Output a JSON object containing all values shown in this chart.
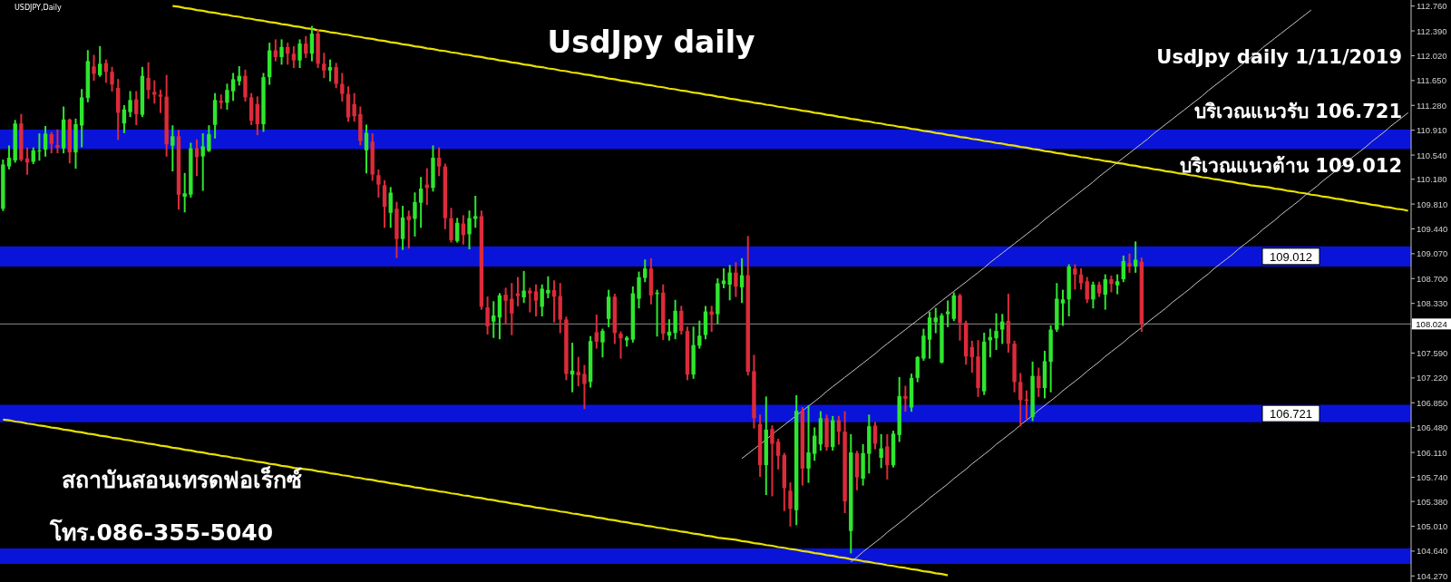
{
  "chart_data": {
    "type": "candlestick",
    "title": "UsdJpy daily",
    "categories": [
      null,
      null,
      null,
      null,
      null,
      null,
      null,
      null,
      null,
      null,
      null,
      null,
      null,
      null,
      null,
      null,
      null,
      null,
      null,
      null,
      null,
      null,
      null,
      null,
      null,
      null,
      null,
      null,
      null,
      null,
      null,
      null,
      null,
      null,
      null,
      null,
      null,
      null,
      null,
      null,
      null,
      null,
      null,
      null,
      null,
      null,
      null,
      null,
      null,
      null,
      null,
      null,
      null,
      null,
      null,
      null,
      null,
      null,
      null,
      null,
      null,
      null,
      null,
      null,
      null,
      null,
      null,
      null,
      null,
      null,
      null,
      null,
      null,
      null,
      null,
      null,
      null,
      null,
      null,
      null,
      null,
      null,
      null,
      null,
      null,
      null,
      null,
      null,
      null,
      null,
      null,
      null,
      null,
      null,
      null,
      null,
      null,
      null,
      null,
      null,
      null,
      null,
      null,
      null,
      null,
      null,
      null,
      null,
      null,
      null,
      null,
      null,
      null,
      null,
      null,
      null,
      null,
      null,
      null,
      null,
      null,
      null,
      null,
      null,
      null,
      null,
      null,
      null,
      null,
      null,
      null,
      null,
      null,
      null,
      null,
      null,
      null,
      null,
      null,
      null,
      null,
      null,
      null,
      null,
      null,
      null,
      null,
      null,
      null,
      null,
      null,
      null,
      null,
      null,
      null,
      null,
      null,
      null,
      null,
      null,
      null,
      null,
      null,
      null,
      null,
      null,
      null,
      null,
      null,
      null,
      null,
      null,
      null,
      null,
      null,
      null,
      null,
      null,
      null,
      null,
      null,
      null,
      null,
      null,
      null,
      null,
      null,
      null,
      null,
      null,
      null,
      null,
      null,
      null,
      null,
      null,
      null,
      null,
      null,
      null,
      null,
      null,
      null,
      null,
      null,
      null,
      null,
      null,
      null,
      null,
      null,
      null,
      null,
      null,
      null,
      null,
      null,
      null,
      null,
      null,
      null,
      null,
      null,
      null,
      null,
      null,
      null,
      null,
      null,
      null,
      null,
      null,
      null
    ],
    "ohlc": [
      [
        109.74,
        110.46,
        109.72,
        110.4
      ],
      [
        110.37,
        110.67,
        110.34,
        110.5
      ],
      [
        110.46,
        111.05,
        110.44,
        111.01
      ],
      [
        111.01,
        111.14,
        110.46,
        110.47
      ],
      [
        110.49,
        110.64,
        110.26,
        110.43
      ],
      [
        110.44,
        110.64,
        110.42,
        110.61
      ],
      [
        110.6,
        110.85,
        110.47,
        110.61
      ],
      [
        110.62,
        110.96,
        110.53,
        110.86
      ],
      [
        110.85,
        110.87,
        110.58,
        110.71
      ],
      [
        110.69,
        110.91,
        110.58,
        110.65
      ],
      [
        110.64,
        111.25,
        110.58,
        111.07
      ],
      [
        111.07,
        111.07,
        110.43,
        110.58
      ],
      [
        110.58,
        111.07,
        110.35,
        111.0
      ],
      [
        110.98,
        111.51,
        110.67,
        111.4
      ],
      [
        111.39,
        112.09,
        111.34,
        111.94
      ],
      [
        111.86,
        112.02,
        111.66,
        111.75
      ],
      [
        111.73,
        112.15,
        111.72,
        111.9
      ],
      [
        111.91,
        111.95,
        111.63,
        111.78
      ],
      [
        111.78,
        111.84,
        111.5,
        111.59
      ],
      [
        111.54,
        111.66,
        110.78,
        111.17
      ],
      [
        111.01,
        111.27,
        110.88,
        111.22
      ],
      [
        111.18,
        111.48,
        111.12,
        111.36
      ],
      [
        111.37,
        111.48,
        111.0,
        111.15
      ],
      [
        111.14,
        111.84,
        111.12,
        111.72
      ],
      [
        111.69,
        111.91,
        111.39,
        111.51
      ],
      [
        111.48,
        111.64,
        111.32,
        111.44
      ],
      [
        111.44,
        111.5,
        111.18,
        111.41
      ],
      [
        111.41,
        111.72,
        110.53,
        110.7
      ],
      [
        110.68,
        110.97,
        110.31,
        110.82
      ],
      [
        110.82,
        110.9,
        109.74,
        109.95
      ],
      [
        109.92,
        110.26,
        109.7,
        109.97
      ],
      [
        109.95,
        110.71,
        109.92,
        110.64
      ],
      [
        110.64,
        110.76,
        110.24,
        110.51
      ],
      [
        110.52,
        110.85,
        110.02,
        110.67
      ],
      [
        110.6,
        110.97,
        110.6,
        110.85
      ],
      [
        110.99,
        111.45,
        110.8,
        111.36
      ],
      [
        111.35,
        111.43,
        111.24,
        111.32
      ],
      [
        111.32,
        111.59,
        111.23,
        111.51
      ],
      [
        111.49,
        111.75,
        111.36,
        111.67
      ],
      [
        111.64,
        111.85,
        111.59,
        111.72
      ],
      [
        111.72,
        111.8,
        111.35,
        111.4
      ],
      [
        111.4,
        111.45,
        111.0,
        111.05
      ],
      [
        111.3,
        111.4,
        110.85,
        111.0
      ],
      [
        111.0,
        111.75,
        110.9,
        111.7
      ],
      [
        111.7,
        112.2,
        111.6,
        112.1
      ],
      [
        112.1,
        112.25,
        111.95,
        112.0
      ],
      [
        112.0,
        112.25,
        111.9,
        112.15
      ],
      [
        112.15,
        112.2,
        111.9,
        112.05
      ],
      [
        112.05,
        112.15,
        111.85,
        111.95
      ],
      [
        111.95,
        112.25,
        111.85,
        112.2
      ],
      [
        112.2,
        112.3,
        112.0,
        112.05
      ],
      [
        112.05,
        112.45,
        111.95,
        112.35
      ],
      [
        112.35,
        112.4,
        111.85,
        111.9
      ],
      [
        111.9,
        112.05,
        111.7,
        111.8
      ],
      [
        111.8,
        111.95,
        111.65,
        111.85
      ],
      [
        111.85,
        111.9,
        111.55,
        111.6
      ],
      [
        111.6,
        111.75,
        111.35,
        111.45
      ],
      [
        111.45,
        111.55,
        111.05,
        111.1
      ],
      [
        111.3,
        111.45,
        111.05,
        111.12
      ],
      [
        111.15,
        111.25,
        110.7,
        110.75
      ],
      [
        110.61,
        110.98,
        110.28,
        110.87
      ],
      [
        110.74,
        110.85,
        110.17,
        110.25
      ],
      [
        110.24,
        110.31,
        109.92,
        110.1
      ],
      [
        110.09,
        110.15,
        109.47,
        109.77
      ],
      [
        109.68,
        110.05,
        109.47,
        109.98
      ],
      [
        109.74,
        109.83,
        109.02,
        109.29
      ],
      [
        109.29,
        109.77,
        109.14,
        109.61
      ],
      [
        109.63,
        109.7,
        109.16,
        109.57
      ],
      [
        109.59,
        109.97,
        109.34,
        109.84
      ],
      [
        109.83,
        110.2,
        109.47,
        110.04
      ],
      [
        110.1,
        110.33,
        109.81,
        110.05
      ],
      [
        110.05,
        110.67,
        110.01,
        110.5
      ],
      [
        110.5,
        110.64,
        110.24,
        110.37
      ],
      [
        110.37,
        110.4,
        109.45,
        109.6
      ],
      [
        109.6,
        109.74,
        109.25,
        109.27
      ],
      [
        109.26,
        109.59,
        109.25,
        109.53
      ],
      [
        109.52,
        109.63,
        109.22,
        109.35
      ],
      [
        109.36,
        109.7,
        109.15,
        109.6
      ],
      [
        109.59,
        109.92,
        109.47,
        109.63
      ],
      [
        109.63,
        109.7,
        108.25,
        108.28
      ],
      [
        108.27,
        108.42,
        107.88,
        107.99
      ],
      [
        108.06,
        108.35,
        107.83,
        108.15
      ],
      [
        108.12,
        108.47,
        107.81,
        108.45
      ],
      [
        108.46,
        108.55,
        108.03,
        108.37
      ],
      [
        108.4,
        108.62,
        107.87,
        108.18
      ],
      [
        108.48,
        108.71,
        108.3,
        108.44
      ],
      [
        108.42,
        108.8,
        108.35,
        108.52
      ],
      [
        108.52,
        108.55,
        108.21,
        108.48
      ],
      [
        108.51,
        108.6,
        108.15,
        108.37
      ],
      [
        108.28,
        108.6,
        108.15,
        108.55
      ],
      [
        108.48,
        108.72,
        108.42,
        108.53
      ],
      [
        108.53,
        108.66,
        108.06,
        108.43
      ],
      [
        108.44,
        108.62,
        107.9,
        108.09
      ],
      [
        108.09,
        108.12,
        107.2,
        107.28
      ],
      [
        107.27,
        107.73,
        107.02,
        107.33
      ],
      [
        107.31,
        107.52,
        107.11,
        107.26
      ],
      [
        107.28,
        107.4,
        106.77,
        107.13
      ],
      [
        107.16,
        107.83,
        107.09,
        107.77
      ],
      [
        107.9,
        108.15,
        107.67,
        107.76
      ],
      [
        107.75,
        107.94,
        107.54,
        107.92
      ],
      [
        108.1,
        108.52,
        107.99,
        108.43
      ],
      [
        108.43,
        108.46,
        107.74,
        107.89
      ],
      [
        107.88,
        107.9,
        107.52,
        107.81
      ],
      [
        107.78,
        107.83,
        107.7,
        107.82
      ],
      [
        107.79,
        108.57,
        107.76,
        108.48
      ],
      [
        108.4,
        108.79,
        108.27,
        108.72
      ],
      [
        108.71,
        108.97,
        108.66,
        108.85
      ],
      [
        108.85,
        108.99,
        108.33,
        108.45
      ],
      [
        108.47,
        108.52,
        107.85,
        108.49
      ],
      [
        108.49,
        108.6,
        107.8,
        107.88
      ],
      [
        107.85,
        108.08,
        107.79,
        107.91
      ],
      [
        107.89,
        108.37,
        107.81,
        108.22
      ],
      [
        108.22,
        108.28,
        107.88,
        107.92
      ],
      [
        107.92,
        107.97,
        107.2,
        107.27
      ],
      [
        107.27,
        107.97,
        107.22,
        107.71
      ],
      [
        107.7,
        108.06,
        107.67,
        107.85
      ],
      [
        107.86,
        108.28,
        107.81,
        108.21
      ],
      [
        108.21,
        108.28,
        107.92,
        108.16
      ],
      [
        108.17,
        108.69,
        108.04,
        108.63
      ],
      [
        108.62,
        108.84,
        108.57,
        108.67
      ],
      [
        108.61,
        108.89,
        108.39,
        108.79
      ],
      [
        108.79,
        108.93,
        108.44,
        108.58
      ],
      [
        108.57,
        108.99,
        108.35,
        108.75
      ],
      [
        108.75,
        109.32,
        107.27,
        107.31
      ],
      [
        107.32,
        107.55,
        106.48,
        106.62
      ],
      [
        106.53,
        106.66,
        105.76,
        105.92
      ],
      [
        105.92,
        106.93,
        105.49,
        106.45
      ],
      [
        106.46,
        106.5,
        105.47,
        106.24
      ],
      [
        106.27,
        106.3,
        105.87,
        106.06
      ],
      [
        106.07,
        106.09,
        105.25,
        105.58
      ],
      [
        105.54,
        105.65,
        105.02,
        105.27
      ],
      [
        105.25,
        106.95,
        105.04,
        106.73
      ],
      [
        106.73,
        106.77,
        105.63,
        105.87
      ],
      [
        105.87,
        106.8,
        105.67,
        106.11
      ],
      [
        106.09,
        106.47,
        106.0,
        106.36
      ],
      [
        106.23,
        106.71,
        106.15,
        106.62
      ],
      [
        106.62,
        106.66,
        106.15,
        106.19
      ],
      [
        106.19,
        106.64,
        106.15,
        106.59
      ],
      [
        106.59,
        106.64,
        106.24,
        106.42
      ],
      [
        106.42,
        106.71,
        105.22,
        105.38
      ],
      [
        104.94,
        106.37,
        104.62,
        106.11
      ],
      [
        106.1,
        106.12,
        105.56,
        105.74
      ],
      [
        105.72,
        106.22,
        105.63,
        106.1
      ],
      [
        106.09,
        106.66,
        105.81,
        106.5
      ],
      [
        106.51,
        106.55,
        106.17,
        106.24
      ],
      [
        106.03,
        106.37,
        105.89,
        106.17
      ],
      [
        106.2,
        106.37,
        105.72,
        105.92
      ],
      [
        105.92,
        106.42,
        105.9,
        106.39
      ],
      [
        106.37,
        107.22,
        106.28,
        106.95
      ],
      [
        106.95,
        107.09,
        106.73,
        106.91
      ],
      [
        106.78,
        107.27,
        106.73,
        107.22
      ],
      [
        107.22,
        107.53,
        107.17,
        107.53
      ],
      [
        107.51,
        107.94,
        107.49,
        107.85
      ],
      [
        107.79,
        108.19,
        107.52,
        108.12
      ],
      [
        108.05,
        108.25,
        107.9,
        108.12
      ],
      [
        107.45,
        108.17,
        107.45,
        108.15
      ],
      [
        108.17,
        108.36,
        107.99,
        108.21
      ],
      [
        108.1,
        108.48,
        108.08,
        108.45
      ],
      [
        108.45,
        108.46,
        107.79,
        108.04
      ],
      [
        108.04,
        108.06,
        107.43,
        107.54
      ],
      [
        107.68,
        107.76,
        107.31,
        107.53
      ],
      [
        107.54,
        107.77,
        106.95,
        107.07
      ],
      [
        107.02,
        107.88,
        106.98,
        107.76
      ],
      [
        107.78,
        107.94,
        107.54,
        107.83
      ],
      [
        107.81,
        108.17,
        107.65,
        107.92
      ],
      [
        107.94,
        108.16,
        107.74,
        108.06
      ],
      [
        108.07,
        108.46,
        107.61,
        107.73
      ],
      [
        107.73,
        107.76,
        107.02,
        107.16
      ],
      [
        107.16,
        107.28,
        106.51,
        106.89
      ],
      [
        106.9,
        107.02,
        106.62,
        106.88
      ],
      [
        106.64,
        107.45,
        106.59,
        107.25
      ],
      [
        107.25,
        107.36,
        106.95,
        107.07
      ],
      [
        107.07,
        107.61,
        106.93,
        107.47
      ],
      [
        107.46,
        107.99,
        107.02,
        107.94
      ],
      [
        107.94,
        108.62,
        107.92,
        108.4
      ],
      [
        108.33,
        108.52,
        108.01,
        108.39
      ],
      [
        108.39,
        108.9,
        108.15,
        108.88
      ],
      [
        108.85,
        108.9,
        108.55,
        108.76
      ],
      [
        108.76,
        108.84,
        108.55,
        108.63
      ],
      [
        108.66,
        108.71,
        108.35,
        108.39
      ],
      [
        108.39,
        108.64,
        108.27,
        108.61
      ],
      [
        108.61,
        108.64,
        108.44,
        108.48
      ],
      [
        108.46,
        108.75,
        108.25,
        108.69
      ],
      [
        108.69,
        108.73,
        108.51,
        108.62
      ],
      [
        108.6,
        108.75,
        108.48,
        108.66
      ],
      [
        108.69,
        109.03,
        108.66,
        108.96
      ],
      [
        108.93,
        109.06,
        108.8,
        108.88
      ],
      [
        108.88,
        109.24,
        108.8,
        108.98
      ],
      [
        108.95,
        109.0,
        107.92,
        108.024
      ],
      null,
      null,
      null,
      null,
      null,
      null,
      null,
      null,
      null,
      null,
      null,
      null,
      null,
      null,
      null,
      null,
      null,
      null,
      null,
      null,
      null,
      null,
      null,
      null,
      null,
      null,
      null,
      null,
      null,
      null,
      null,
      null,
      null,
      null,
      null,
      null,
      null,
      null,
      null,
      null,
      null,
      null,
      null,
      null
    ],
    "series": [
      {
        "type": "line",
        "color": "#e8e000",
        "values": [
          null,
          null,
          null,
          null,
          null,
          null,
          null,
          null,
          null,
          null,
          null,
          null,
          null,
          null,
          null,
          null,
          null,
          null,
          null,
          null,
          null,
          null,
          null,
          null,
          null,
          null,
          null,
          null,
          112.76,
          112.75,
          112.73,
          112.72,
          112.7,
          112.69,
          112.67,
          112.66,
          112.64,
          112.63,
          112.61,
          112.6,
          112.58,
          112.57,
          112.55,
          112.54,
          112.52,
          112.51,
          112.49,
          112.48,
          112.46,
          112.45,
          112.43,
          112.42,
          112.4,
          112.39,
          112.37,
          112.36,
          112.34,
          112.33,
          112.31,
          112.3,
          112.28,
          112.27,
          112.25,
          112.24,
          112.22,
          112.21,
          112.19,
          112.18,
          112.16,
          112.15,
          112.13,
          112.12,
          112.1,
          112.09,
          112.07,
          112.06,
          112.04,
          112.03,
          112.01,
          112.0,
          111.98,
          111.97,
          111.95,
          111.94,
          111.92,
          111.91,
          111.89,
          111.88,
          111.86,
          111.85,
          111.83,
          111.82,
          111.8,
          111.79,
          111.77,
          111.76,
          111.74,
          111.73,
          111.71,
          111.7,
          111.68,
          111.67,
          111.65,
          111.64,
          111.62,
          111.61,
          111.59,
          111.58,
          111.56,
          111.55,
          111.53,
          111.52,
          111.5,
          111.49,
          111.47,
          111.46,
          111.44,
          111.43,
          111.41,
          111.4,
          111.38,
          111.37,
          111.35,
          111.34,
          111.32,
          111.31,
          111.29,
          111.28,
          111.26,
          111.25,
          111.23,
          111.22,
          111.2,
          111.19,
          111.17,
          111.16,
          111.14,
          111.13,
          111.11,
          111.1,
          111.08,
          111.07,
          111.05,
          111.04,
          111.02,
          111.01,
          110.99,
          110.98,
          110.96,
          110.95,
          110.93,
          110.92,
          110.9,
          110.89,
          110.87,
          110.86,
          110.84,
          110.83,
          110.81,
          110.8,
          110.78,
          110.77,
          110.75,
          110.74,
          110.72,
          110.71,
          110.69,
          110.68,
          110.66,
          110.65,
          110.63,
          110.62,
          110.6,
          110.59,
          110.57,
          110.56,
          110.54,
          110.53,
          110.51,
          110.5,
          110.48,
          110.47,
          110.45,
          110.44,
          110.42,
          110.41,
          110.39,
          110.38,
          110.36,
          110.35,
          110.33,
          110.32,
          110.3,
          110.29,
          110.27,
          110.26,
          110.24,
          110.23,
          110.21,
          110.2,
          110.18,
          110.17,
          110.15,
          110.14,
          110.12,
          110.11,
          110.09,
          110.08,
          110.07,
          110.06,
          110.04,
          110.03,
          110.01,
          110.0,
          109.98,
          109.97,
          109.95,
          109.94,
          109.92,
          109.91,
          109.89,
          109.88,
          109.86,
          109.85,
          109.83,
          109.82,
          109.8,
          109.79,
          109.77,
          109.76,
          109.74,
          109.73,
          109.71
        ]
      },
      {
        "type": "line",
        "color": "#e8e000",
        "values": [
          106.6,
          106.59,
          106.57,
          106.56,
          106.54,
          106.53,
          106.51,
          106.5,
          106.48,
          106.47,
          106.45,
          106.44,
          106.42,
          106.41,
          106.39,
          106.38,
          106.36,
          106.35,
          106.33,
          106.32,
          106.3,
          106.29,
          106.27,
          106.26,
          106.24,
          106.23,
          106.21,
          106.2,
          106.18,
          106.17,
          106.15,
          106.14,
          106.12,
          106.11,
          106.09,
          106.08,
          106.06,
          106.05,
          106.03,
          106.02,
          106.0,
          105.99,
          105.97,
          105.96,
          105.94,
          105.93,
          105.91,
          105.9,
          105.88,
          105.87,
          105.86,
          105.85,
          105.83,
          105.82,
          105.8,
          105.79,
          105.77,
          105.76,
          105.74,
          105.73,
          105.71,
          105.7,
          105.68,
          105.67,
          105.65,
          105.64,
          105.62,
          105.61,
          105.59,
          105.58,
          105.56,
          105.55,
          105.53,
          105.52,
          105.5,
          105.49,
          105.47,
          105.46,
          105.44,
          105.43,
          105.41,
          105.4,
          105.38,
          105.37,
          105.35,
          105.34,
          105.32,
          105.31,
          105.29,
          105.28,
          105.26,
          105.25,
          105.23,
          105.22,
          105.2,
          105.19,
          105.17,
          105.16,
          105.14,
          105.13,
          105.11,
          105.1,
          105.08,
          105.07,
          105.05,
          105.04,
          105.02,
          105.01,
          104.99,
          104.98,
          104.96,
          104.95,
          104.93,
          104.92,
          104.9,
          104.89,
          104.87,
          104.86,
          104.84,
          104.83,
          104.82,
          104.81,
          104.79,
          104.78,
          104.76,
          104.75,
          104.73,
          104.72,
          104.7,
          104.69,
          104.67,
          104.66,
          104.64,
          104.63,
          104.61,
          104.6,
          104.58,
          104.57,
          104.55,
          104.54,
          104.52,
          104.51,
          104.49,
          104.48,
          104.46,
          104.45,
          104.43,
          104.42,
          104.4,
          104.39,
          104.37,
          104.36,
          104.34,
          104.33,
          104.31,
          104.3,
          104.28,
          null,
          null,
          null,
          null,
          null,
          null,
          null,
          null,
          null,
          null,
          null,
          null,
          null,
          null,
          null,
          null,
          null,
          null,
          null,
          null,
          null,
          null,
          null,
          null,
          null,
          null,
          null,
          null,
          null,
          null,
          null,
          null,
          null,
          null,
          null,
          null,
          null,
          null,
          null,
          null,
          null,
          null,
          null,
          null,
          null,
          null,
          null,
          null,
          null,
          null,
          null,
          null,
          null,
          null,
          null,
          null,
          null,
          null,
          null,
          null,
          null,
          null,
          null,
          null,
          null,
          null,
          null,
          null,
          null,
          null,
          null,
          null,
          null,
          null,
          null,
          null
        ]
      },
      {
        "type": "line",
        "color": "#c8c8c8",
        "values": [
          null,
          null,
          null,
          null,
          null,
          null,
          null,
          null,
          null,
          null,
          null,
          null,
          null,
          null,
          null,
          null,
          null,
          null,
          null,
          null,
          null,
          null,
          null,
          null,
          null,
          null,
          null,
          null,
          null,
          null,
          null,
          null,
          null,
          null,
          null,
          null,
          null,
          null,
          null,
          null,
          null,
          null,
          null,
          null,
          null,
          null,
          null,
          null,
          null,
          null,
          null,
          null,
          null,
          null,
          null,
          null,
          null,
          null,
          null,
          null,
          null,
          null,
          null,
          null,
          null,
          null,
          null,
          null,
          null,
          null,
          null,
          null,
          null,
          null,
          null,
          null,
          null,
          null,
          null,
          null,
          null,
          null,
          null,
          null,
          null,
          null,
          null,
          null,
          null,
          null,
          null,
          null,
          null,
          null,
          null,
          null,
          null,
          null,
          null,
          null,
          null,
          null,
          null,
          null,
          null,
          null,
          null,
          null,
          null,
          null,
          null,
          null,
          null,
          null,
          null,
          null,
          null,
          null,
          null,
          null,
          null,
          null,
          106.02,
          106.09,
          106.16,
          106.23,
          106.3,
          106.38,
          106.45,
          106.52,
          106.59,
          106.66,
          106.73,
          106.8,
          106.87,
          106.94,
          107.02,
          107.09,
          107.16,
          107.23,
          107.3,
          107.37,
          107.44,
          107.51,
          107.58,
          107.66,
          107.73,
          107.8,
          107.87,
          107.94,
          108.01,
          108.08,
          108.15,
          108.22,
          108.3,
          108.37,
          108.44,
          108.51,
          108.58,
          108.65,
          108.72,
          108.79,
          108.86,
          108.94,
          109.01,
          109.08,
          109.15,
          109.22,
          109.29,
          109.36,
          109.43,
          109.5,
          109.58,
          109.65,
          109.72,
          109.79,
          109.86,
          109.93,
          110.0,
          110.07,
          110.14,
          110.22,
          110.29,
          110.36,
          110.43,
          110.5,
          110.57,
          110.64,
          110.71,
          110.78,
          110.86,
          110.93,
          111.0,
          111.07,
          111.14,
          111.21,
          111.28,
          111.35,
          111.42,
          111.5,
          111.57,
          111.64,
          111.71,
          111.78,
          111.85,
          111.92,
          111.99,
          112.06,
          112.14,
          112.21,
          112.28,
          112.35,
          112.42,
          112.49,
          112.56,
          112.63,
          112.7,
          null,
          null,
          null,
          null,
          null,
          null,
          null,
          null,
          null,
          null,
          null,
          null,
          null,
          null,
          null,
          null
        ]
      },
      {
        "type": "line",
        "color": "#c8c8c8",
        "values": [
          null,
          null,
          null,
          null,
          null,
          null,
          null,
          null,
          null,
          null,
          null,
          null,
          null,
          null,
          null,
          null,
          null,
          null,
          null,
          null,
          null,
          null,
          null,
          null,
          null,
          null,
          null,
          null,
          null,
          null,
          null,
          null,
          null,
          null,
          null,
          null,
          null,
          null,
          null,
          null,
          null,
          null,
          null,
          null,
          null,
          null,
          null,
          null,
          null,
          null,
          null,
          null,
          null,
          null,
          null,
          null,
          null,
          null,
          null,
          null,
          null,
          null,
          null,
          null,
          null,
          null,
          null,
          null,
          null,
          null,
          null,
          null,
          null,
          null,
          null,
          null,
          null,
          null,
          null,
          null,
          null,
          null,
          null,
          null,
          null,
          null,
          null,
          null,
          null,
          null,
          null,
          null,
          null,
          null,
          null,
          null,
          null,
          null,
          null,
          null,
          null,
          null,
          null,
          null,
          null,
          null,
          null,
          null,
          null,
          null,
          null,
          null,
          null,
          null,
          null,
          null,
          null,
          null,
          null,
          null,
          null,
          null,
          null,
          null,
          null,
          null,
          null,
          null,
          null,
          null,
          null,
          null,
          null,
          null,
          null,
          null,
          null,
          null,
          null,
          null,
          104.48,
          104.55,
          104.63,
          104.7,
          104.77,
          104.84,
          104.92,
          104.99,
          105.06,
          105.13,
          105.21,
          105.28,
          105.35,
          105.43,
          105.5,
          105.57,
          105.64,
          105.72,
          105.79,
          105.86,
          105.94,
          106.01,
          106.08,
          106.15,
          106.23,
          106.3,
          106.37,
          106.44,
          106.52,
          106.59,
          106.66,
          106.74,
          106.81,
          106.88,
          106.95,
          107.03,
          107.1,
          107.17,
          107.24,
          107.32,
          107.39,
          107.46,
          107.54,
          107.61,
          107.68,
          107.75,
          107.83,
          107.9,
          107.97,
          108.05,
          108.12,
          108.19,
          108.26,
          108.34,
          108.41,
          108.48,
          108.55,
          108.63,
          108.7,
          108.77,
          108.85,
          108.92,
          108.99,
          109.06,
          109.14,
          109.21,
          109.28,
          109.35,
          109.43,
          109.5,
          109.57,
          109.65,
          109.72,
          109.79,
          109.86,
          109.94,
          110.01,
          110.08,
          110.16,
          110.23,
          110.3,
          110.37,
          110.45,
          110.52,
          110.59,
          110.66,
          110.74,
          110.81,
          110.88,
          110.96,
          111.03,
          111.1,
          111.17
        ]
      }
    ],
    "ylim": [
      104.18,
      112.85
    ],
    "yticks": [
      {
        "value": 112.76,
        "label": "112.760"
      },
      {
        "value": 112.39,
        "label": "112.390"
      },
      {
        "value": 112.02,
        "label": "112.020"
      },
      {
        "value": 111.65,
        "label": "111.650"
      },
      {
        "value": 111.28,
        "label": "111.280"
      },
      {
        "value": 110.91,
        "label": "110.910"
      },
      {
        "value": 110.54,
        "label": "110.540"
      },
      {
        "value": 110.18,
        "label": "110.180"
      },
      {
        "value": 109.81,
        "label": "109.810"
      },
      {
        "value": 109.44,
        "label": "109.440"
      },
      {
        "value": 109.07,
        "label": "109.070"
      },
      {
        "value": 108.7,
        "label": "108.700"
      },
      {
        "value": 108.33,
        "label": "108.330"
      },
      {
        "value": 107.96,
        "label": null
      },
      {
        "value": 107.59,
        "label": "107.590"
      },
      {
        "value": 107.22,
        "label": "107.220"
      },
      {
        "value": 106.85,
        "label": "106.850"
      },
      {
        "value": 106.48,
        "label": "106.480"
      },
      {
        "value": 106.11,
        "label": "106.110"
      },
      {
        "value": 105.74,
        "label": "105.740"
      },
      {
        "value": 105.38,
        "label": "105.380"
      },
      {
        "value": 105.01,
        "label": "105.010"
      },
      {
        "value": 104.64,
        "label": "104.640"
      },
      {
        "value": 104.27,
        "label": "104.270"
      }
    ],
    "bands": [
      {
        "axis": "y",
        "from": 110.63,
        "to": 110.92,
        "label": null,
        "color": "#0a14d8"
      },
      {
        "axis": "y",
        "from": 108.88,
        "to": 109.18,
        "label": "109.012",
        "color": "#0a14d8"
      },
      {
        "axis": "y",
        "from": 106.56,
        "to": 106.82,
        "label": "106.721",
        "color": "#0a14d8"
      },
      {
        "axis": "y",
        "from": 104.45,
        "to": 104.68,
        "label": null,
        "color": "#0a14d8"
      }
    ],
    "ref_lines": [
      {
        "axis": "y",
        "value": 108.024,
        "label": "108.024",
        "color": "#8c8c8c"
      }
    ],
    "annotations": [
      "USDJPY,Daily",
      "UsdJpy daily 1/11/2019",
      "บริเวณแนวรับ 106.721",
      "บริเวณแนวต้าน 109.012",
      "สถาบันสอนเทรดฟอเร็กซ์",
      "โทร.086-355-5040"
    ]
  }
}
